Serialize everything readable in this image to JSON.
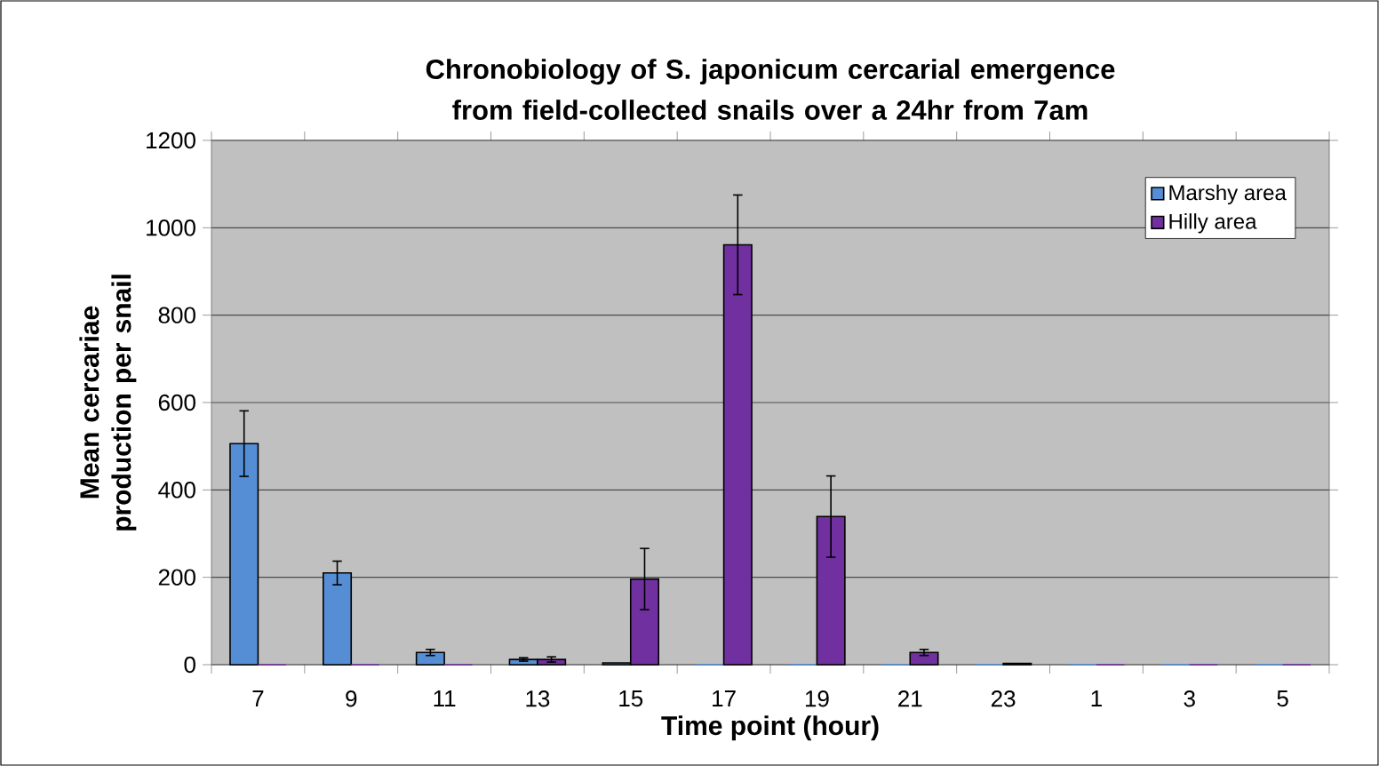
{
  "chart_data": {
    "type": "bar",
    "title": "Chronobiology of S. japonicum cercarial emergence from field-collected snails over a 24hr from 7am",
    "xlabel": "Time point (hour)",
    "ylabel": "Mean cercariae production per snail",
    "categories": [
      "7",
      "9",
      "11",
      "13",
      "15",
      "17",
      "19",
      "21",
      "23",
      "1",
      "3",
      "5"
    ],
    "series": [
      {
        "name": "Marshy area",
        "color": "#558ed5",
        "values": [
          506,
          210,
          28,
          12,
          4,
          0,
          0,
          0,
          0,
          0,
          0,
          0
        ],
        "errors": [
          75,
          27,
          7,
          4,
          null,
          null,
          null,
          null,
          null,
          null,
          null,
          null
        ]
      },
      {
        "name": "Hilly area",
        "color": "#7030a0",
        "values": [
          0,
          0,
          0,
          12,
          196,
          961,
          339,
          28,
          3,
          0,
          0,
          0
        ],
        "errors": [
          null,
          null,
          null,
          6,
          70,
          114,
          93,
          7,
          null,
          null,
          null,
          null
        ]
      }
    ],
    "ylim": [
      0,
      1200
    ],
    "yticks": [
      0,
      200,
      400,
      600,
      800,
      1000,
      1200
    ],
    "grid": "y",
    "legend": "top right"
  }
}
